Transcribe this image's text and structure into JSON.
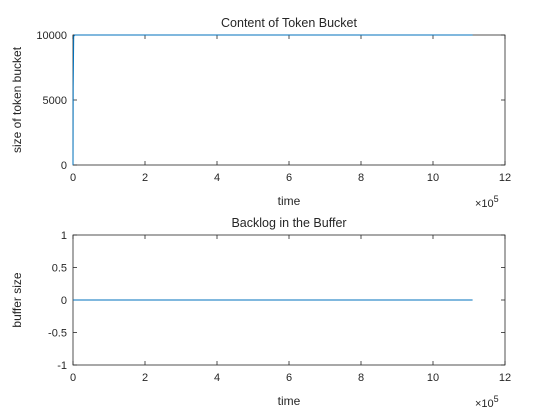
{
  "chart_data": [
    {
      "type": "line",
      "title": "Content of Token Bucket",
      "xlabel": "time",
      "ylabel": "size of token bucket",
      "x_exponent_label": "10",
      "x_exponent_power": "5",
      "xlim": [
        0,
        12
      ],
      "ylim": [
        0,
        10000
      ],
      "xticks": [
        0,
        2,
        4,
        6,
        8,
        10,
        12
      ],
      "yticks": [
        0,
        5000,
        10000
      ],
      "grid": false,
      "series": [
        {
          "color": "#0072bd",
          "x": [
            0,
            0.005,
            0.02,
            0.05,
            11.1
          ],
          "y": [
            0,
            6000,
            9900,
            10000,
            10000
          ]
        }
      ]
    },
    {
      "type": "line",
      "title": "Backlog in the Buffer",
      "xlabel": "time",
      "ylabel": "buffer size",
      "x_exponent_label": "10",
      "x_exponent_power": "5",
      "xlim": [
        0,
        12
      ],
      "ylim": [
        -1,
        1
      ],
      "xticks": [
        0,
        2,
        4,
        6,
        8,
        10,
        12
      ],
      "yticks": [
        -1,
        -0.5,
        0,
        0.5,
        1
      ],
      "grid": false,
      "series": [
        {
          "color": "#0072bd",
          "x": [
            0,
            11.1
          ],
          "y": [
            0,
            0
          ]
        }
      ]
    }
  ]
}
